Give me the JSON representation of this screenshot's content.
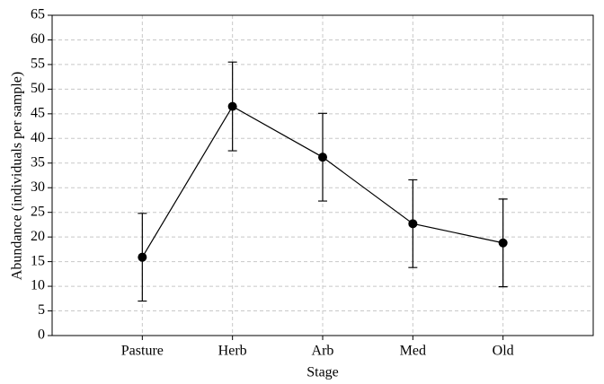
{
  "chart_data": {
    "type": "line",
    "x_label": "Stage",
    "y_label": "Abundance (individuals per sample)",
    "categories": [
      "Pasture",
      "Herb",
      "Arb",
      "Med",
      "Old"
    ],
    "values": [
      15.9,
      46.5,
      36.2,
      22.7,
      18.8
    ],
    "errors": [
      8.9,
      9.0,
      8.9,
      8.9,
      8.9
    ],
    "color": "#000000",
    "ylim": [
      0,
      65
    ],
    "yticks": [
      0,
      5,
      10,
      15,
      20,
      25,
      30,
      35,
      40,
      45,
      50,
      55,
      60,
      65
    ],
    "grid": true
  }
}
